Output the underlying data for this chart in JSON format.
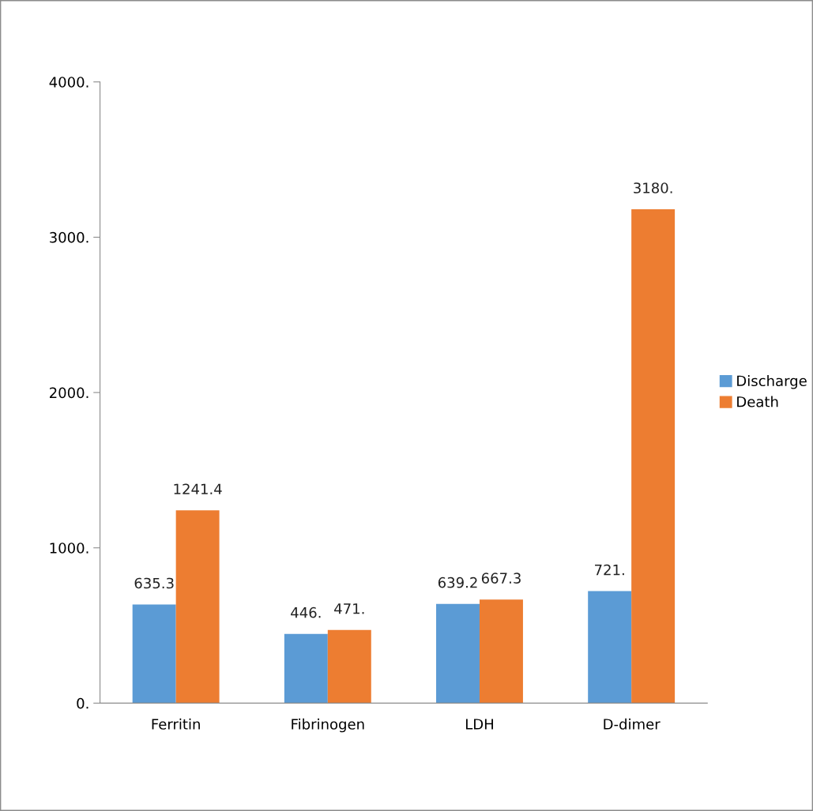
{
  "chart_data": {
    "type": "bar",
    "categories": [
      "Ferritin",
      "Fibrinogen",
      "LDH",
      "D-dimer"
    ],
    "series": [
      {
        "name": "Discharge",
        "color": "#5b9bd5",
        "values": [
          635.3,
          446,
          639.2,
          721
        ],
        "value_labels": [
          "635.3",
          "446.",
          "639.2",
          "721."
        ]
      },
      {
        "name": "Death",
        "color": "#ed7d31",
        "values": [
          1241.4,
          471,
          667.3,
          3180
        ],
        "value_labels": [
          "1241.4",
          "471.",
          "667.3",
          "3180."
        ]
      }
    ],
    "ylim": [
      0,
      4000
    ],
    "yticks": [
      {
        "value": 0,
        "label": "0."
      },
      {
        "value": 1000,
        "label": "1000."
      },
      {
        "value": 2000,
        "label": "2000."
      },
      {
        "value": 3000,
        "label": "3000."
      },
      {
        "value": 4000,
        "label": "4000."
      }
    ],
    "grid": false,
    "legend": "right"
  }
}
